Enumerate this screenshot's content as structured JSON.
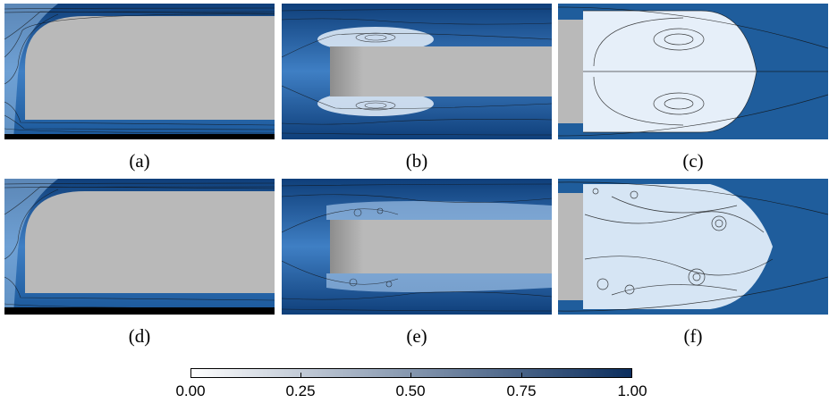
{
  "panels": [
    {
      "caption": "(a)"
    },
    {
      "caption": "(b)"
    },
    {
      "caption": "(c)"
    },
    {
      "caption": "(d)"
    },
    {
      "caption": "(e)"
    },
    {
      "caption": "(f)"
    }
  ],
  "colorbar": {
    "ticks": [
      "0.00",
      "0.25",
      "0.50",
      "0.75",
      "1.00"
    ],
    "colors": [
      "#ffffff",
      "#0b2e5e"
    ]
  },
  "colors": {
    "body": "#b9b9b9",
    "flow_deep": "#0f3f7a",
    "flow_mid": "#3f7fc4",
    "flow_light": "#dbe8f5",
    "streamline": "#111111"
  }
}
